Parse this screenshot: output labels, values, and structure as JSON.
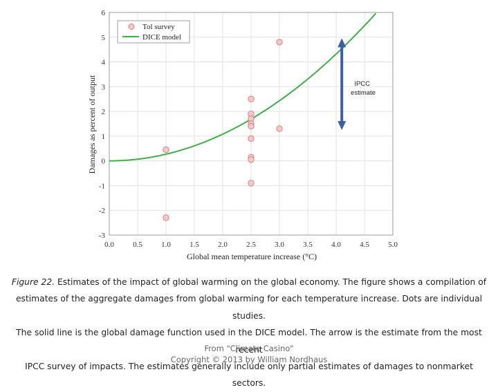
{
  "chart_data": {
    "type": "scatter",
    "xlabel": "Global mean temperature increase (°C)",
    "ylabel": "Damages as percent of output",
    "xlim": [
      0,
      5
    ],
    "ylim": [
      -3,
      6
    ],
    "x_ticks": [
      "0.0",
      "0.5",
      "1.0",
      "1.5",
      "2.0",
      "2.5",
      "3.0",
      "3.5",
      "4.0",
      "4.5",
      "5.0"
    ],
    "y_ticks": [
      "6",
      "5",
      "4",
      "3",
      "2",
      "1",
      "0",
      "-1",
      "-2",
      "-3"
    ],
    "grid": true,
    "legend_position": "top-left",
    "series": [
      {
        "name": "Tol survey",
        "kind": "points",
        "color": "#e89a9a",
        "points": [
          {
            "x": 1.0,
            "y": 0.45
          },
          {
            "x": 1.0,
            "y": -2.3
          },
          {
            "x": 2.5,
            "y": 2.5
          },
          {
            "x": 2.5,
            "y": 1.9
          },
          {
            "x": 2.5,
            "y": 1.7
          },
          {
            "x": 2.5,
            "y": 1.5
          },
          {
            "x": 2.5,
            "y": 1.4
          },
          {
            "x": 2.5,
            "y": 0.9
          },
          {
            "x": 2.5,
            "y": 0.15
          },
          {
            "x": 2.5,
            "y": 0.05
          },
          {
            "x": 2.5,
            "y": -0.9
          },
          {
            "x": 3.0,
            "y": 4.8
          },
          {
            "x": 3.0,
            "y": 1.3
          }
        ]
      },
      {
        "name": "DICE model",
        "kind": "curve",
        "color": "#3cb043",
        "coefficient": 0.27,
        "exponent": 2,
        "x_range": [
          0,
          5
        ]
      }
    ],
    "annotations": [
      {
        "text": "IPCC estimate",
        "kind": "double-arrow",
        "x": 4.1,
        "y_from": 1.3,
        "y_to": 4.9,
        "color": "#3a5fa8"
      }
    ]
  },
  "caption": {
    "figure_label": "Figure 22.",
    "lines": [
      " Estimates of the impact of global warming on the global economy. The figure shows a compilation of",
      "estimates of the aggregate damages from global warming for each temperature increase. Dots are individual studies.",
      "The solid line is the global damage function used in the DICE model. The arrow is the estimate from the most recent",
      "IPCC survey of impacts. The estimates generally include only partial estimates of damages to nonmarket sectors."
    ]
  },
  "credit": {
    "line1": "From \"Climate Casino\"",
    "line2": "Copyright © 2013 by William Nordhaus"
  }
}
